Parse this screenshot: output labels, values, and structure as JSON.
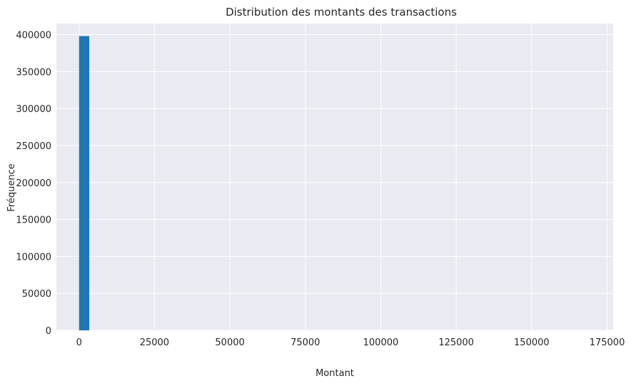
{
  "chart_data": {
    "type": "bar",
    "title": "Distribution des montants des transactions",
    "xlabel": "Montant",
    "ylabel": "Fréquence",
    "xlim": [
      -7500,
      177000
    ],
    "ylim": [
      0,
      415000
    ],
    "x_ticks": [
      0,
      25000,
      50000,
      75000,
      100000,
      125000,
      150000,
      175000
    ],
    "y_ticks": [
      0,
      50000,
      100000,
      150000,
      200000,
      250000,
      300000,
      350000,
      400000
    ],
    "bins": [
      {
        "x0": 0,
        "x1": 3400,
        "value": 398000
      }
    ],
    "grid": true,
    "bar_color": "#1f77b4",
    "background_color": "#eaeaf2",
    "grid_color": "#ffffff"
  }
}
